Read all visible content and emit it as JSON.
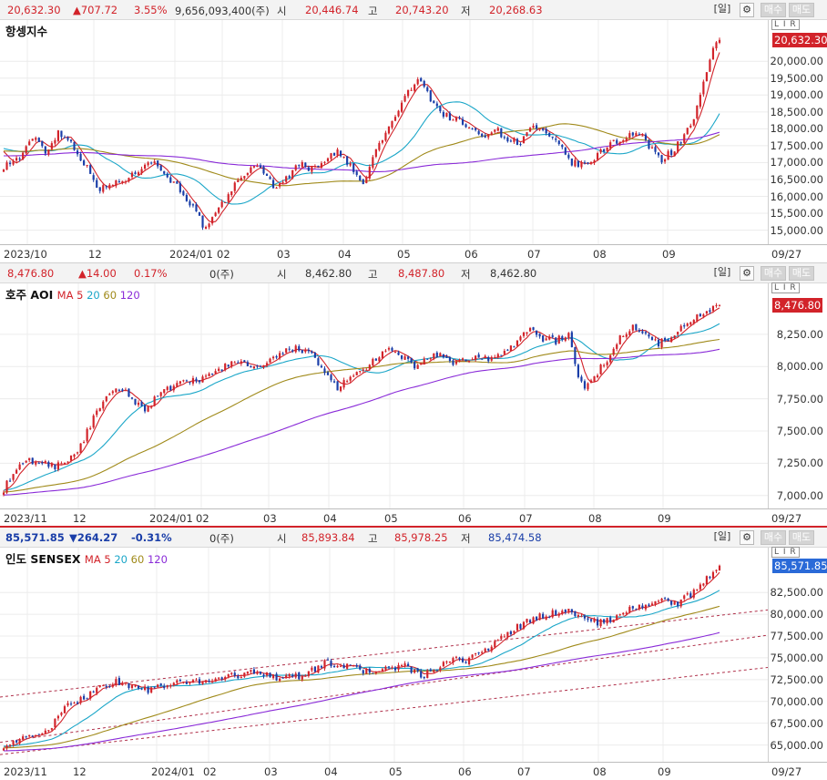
{
  "panels": [
    {
      "header": {
        "price": "20,632.30",
        "change": "▲707.72",
        "pct": "3.55%",
        "volume": "9,656,093,400(주)",
        "open_label": "시",
        "open": "20,446.74",
        "high_label": "고",
        "high": "20,743.20",
        "low_label": "저",
        "low": "20,268.63",
        "dir": "up"
      },
      "toolbar": {
        "period": "[일]",
        "gear": "⚙",
        "buy": "매수",
        "sell": "매도",
        "lir": "L I R"
      },
      "title": "항셍지수",
      "ma_legend": null,
      "price_ticks": [
        "20,000.00",
        "19,500.00",
        "19,000.00",
        "18,500.00",
        "18,000.00",
        "17,500.00",
        "17,000.00",
        "16,500.00",
        "16,000.00",
        "15,500.00",
        "15,000.00"
      ],
      "current_label": "20,632.30",
      "x_labels": [
        "2023/10",
        "12",
        "2024/01",
        "02",
        "03",
        "04",
        "05",
        "06",
        "07",
        "08",
        "09",
        "09/27"
      ]
    },
    {
      "header": {
        "price": "8,476.80",
        "change": "▲14.00",
        "pct": "0.17%",
        "volume": "0(주)",
        "open_label": "시",
        "open": "8,462.80",
        "high_label": "고",
        "high": "8,487.80",
        "low_label": "저",
        "low": "8,462.80",
        "dir": "up"
      },
      "toolbar": {
        "period": "[일]",
        "gear": "⚙",
        "buy": "매수",
        "sell": "매도",
        "lir": "L I R"
      },
      "title": "호주 AOI",
      "ma_legend": {
        "label": "MA",
        "p5": "5",
        "p20": "20",
        "p60": "60",
        "p120": "120"
      },
      "price_ticks": [
        "8,250.00",
        "8,000.00",
        "7,750.00",
        "7,500.00",
        "7,250.00",
        "7,000.00"
      ],
      "current_label": "8,476.80",
      "x_labels": [
        "2023/11",
        "12",
        "2024/01",
        "02",
        "03",
        "04",
        "05",
        "06",
        "07",
        "08",
        "09",
        "09/27"
      ]
    },
    {
      "header": {
        "price": "85,571.85",
        "change": "▼264.27",
        "pct": "-0.31%",
        "volume": "0(주)",
        "open_label": "시",
        "open": "85,893.84",
        "high_label": "고",
        "high": "85,978.25",
        "low_label": "저",
        "low": "85,474.58",
        "dir": "down"
      },
      "toolbar": {
        "period": "[일]",
        "gear": "⚙",
        "buy": "매수",
        "sell": "매도",
        "lir": "L I R"
      },
      "title": "인도 SENSEX",
      "ma_legend": {
        "label": "MA",
        "p5": "5",
        "p20": "20",
        "p60": "60",
        "p120": "120"
      },
      "price_ticks": [
        "82,500.00",
        "80,000.00",
        "77,500.00",
        "75,000.00",
        "72,500.00",
        "70,000.00",
        "67,500.00",
        "65,000.00"
      ],
      "current_label": "85,571.85",
      "x_labels": [
        "2023/11",
        "12",
        "2024/01",
        "02",
        "03",
        "04",
        "05",
        "06",
        "07",
        "08",
        "09",
        "09/27"
      ]
    }
  ],
  "colors": {
    "up": "#d2232a",
    "down": "#1a3ea8",
    "ma5": "#d2232a",
    "ma20": "#1aa6c8",
    "ma60": "#a08a1a",
    "ma120": "#8a2bd8",
    "channel": "#b0304a"
  },
  "chart_data": [
    {
      "type": "candlestick",
      "title": "항셍지수",
      "ylim": [
        14800,
        20950
      ],
      "anchors": [
        [
          0,
          16900
        ],
        [
          5,
          17150
        ],
        [
          10,
          17800
        ],
        [
          13,
          17300
        ],
        [
          17,
          17900
        ],
        [
          21,
          17600
        ],
        [
          25,
          17000
        ],
        [
          30,
          16200
        ],
        [
          35,
          16400
        ],
        [
          40,
          16600
        ],
        [
          45,
          17100
        ],
        [
          48,
          16900
        ],
        [
          52,
          16500
        ],
        [
          56,
          16100
        ],
        [
          60,
          15500
        ],
        [
          63,
          15000
        ],
        [
          67,
          15600
        ],
        [
          71,
          16200
        ],
        [
          75,
          16700
        ],
        [
          80,
          16900
        ],
        [
          84,
          16300
        ],
        [
          88,
          16500
        ],
        [
          92,
          17000
        ],
        [
          96,
          16800
        ],
        [
          100,
          17100
        ],
        [
          104,
          17300
        ],
        [
          108,
          16900
        ],
        [
          112,
          16300
        ],
        [
          116,
          17400
        ],
        [
          120,
          18000
        ],
        [
          123,
          18600
        ],
        [
          127,
          19200
        ],
        [
          130,
          19500
        ],
        [
          133,
          18900
        ],
        [
          137,
          18400
        ],
        [
          141,
          18300
        ],
        [
          145,
          18000
        ],
        [
          149,
          17800
        ],
        [
          153,
          18000
        ],
        [
          157,
          17700
        ],
        [
          161,
          17600
        ],
        [
          165,
          18100
        ],
        [
          169,
          17800
        ],
        [
          173,
          17500
        ],
        [
          177,
          17000
        ],
        [
          181,
          16900
        ],
        [
          185,
          17200
        ],
        [
          189,
          17600
        ],
        [
          193,
          17700
        ],
        [
          197,
          17900
        ],
        [
          201,
          17500
        ],
        [
          205,
          17100
        ],
        [
          209,
          17400
        ],
        [
          212,
          17800
        ],
        [
          215,
          18300
        ],
        [
          217,
          19000
        ],
        [
          219,
          19600
        ],
        [
          221,
          20300
        ],
        [
          223,
          20632
        ]
      ],
      "ma_periods": [
        5,
        20,
        60,
        120
      ],
      "x_months": [
        "2023/10",
        "12",
        "2024/01",
        "02",
        "03",
        "04",
        "05",
        "06",
        "07",
        "08",
        "09"
      ]
    },
    {
      "type": "candlestick",
      "title": "호주 AOI",
      "ylim": [
        6970,
        8560
      ],
      "anchors": [
        [
          0,
          7050
        ],
        [
          4,
          7200
        ],
        [
          8,
          7270
        ],
        [
          12,
          7250
        ],
        [
          16,
          7230
        ],
        [
          20,
          7280
        ],
        [
          24,
          7380
        ],
        [
          28,
          7600
        ],
        [
          32,
          7750
        ],
        [
          36,
          7830
        ],
        [
          40,
          7760
        ],
        [
          44,
          7650
        ],
        [
          48,
          7790
        ],
        [
          52,
          7830
        ],
        [
          56,
          7870
        ],
        [
          60,
          7900
        ],
        [
          64,
          7920
        ],
        [
          68,
          7990
        ],
        [
          72,
          8050
        ],
        [
          76,
          8000
        ],
        [
          80,
          7990
        ],
        [
          84,
          8050
        ],
        [
          88,
          8120
        ],
        [
          92,
          8150
        ],
        [
          96,
          8080
        ],
        [
          100,
          7950
        ],
        [
          104,
          7840
        ],
        [
          108,
          7900
        ],
        [
          112,
          7980
        ],
        [
          116,
          8050
        ],
        [
          120,
          8130
        ],
        [
          124,
          8080
        ],
        [
          128,
          8000
        ],
        [
          132,
          8070
        ],
        [
          136,
          8080
        ],
        [
          140,
          8010
        ],
        [
          144,
          8060
        ],
        [
          148,
          8070
        ],
        [
          152,
          8060
        ],
        [
          156,
          8100
        ],
        [
          160,
          8200
        ],
        [
          164,
          8300
        ],
        [
          168,
          8220
        ],
        [
          172,
          8200
        ],
        [
          176,
          8250
        ],
        [
          179,
          7900
        ],
        [
          181,
          7850
        ],
        [
          184,
          7920
        ],
        [
          188,
          8060
        ],
        [
          192,
          8220
        ],
        [
          196,
          8300
        ],
        [
          200,
          8280
        ],
        [
          204,
          8180
        ],
        [
          208,
          8220
        ],
        [
          212,
          8320
        ],
        [
          216,
          8400
        ],
        [
          220,
          8450
        ],
        [
          223,
          8476.8
        ]
      ],
      "ma_periods": [
        5,
        20,
        60,
        120
      ],
      "x_months": [
        "2023/11",
        "12",
        "2024/01",
        "02",
        "03",
        "04",
        "05",
        "06",
        "07",
        "08",
        "09"
      ]
    },
    {
      "type": "candlestick",
      "title": "인도 SENSEX",
      "ylim": [
        63700,
        86600
      ],
      "anchors": [
        [
          0,
          65000
        ],
        [
          5,
          65600
        ],
        [
          10,
          66000
        ],
        [
          15,
          67200
        ],
        [
          20,
          69500
        ],
        [
          25,
          70500
        ],
        [
          30,
          71600
        ],
        [
          35,
          72300
        ],
        [
          40,
          71700
        ],
        [
          45,
          71300
        ],
        [
          50,
          71800
        ],
        [
          55,
          72100
        ],
        [
          60,
          72300
        ],
        [
          65,
          72500
        ],
        [
          70,
          72900
        ],
        [
          75,
          73100
        ],
        [
          80,
          73400
        ],
        [
          85,
          72800
        ],
        [
          90,
          72700
        ],
        [
          95,
          73300
        ],
        [
          100,
          74400
        ],
        [
          105,
          74300
        ],
        [
          110,
          73600
        ],
        [
          115,
          73400
        ],
        [
          120,
          73800
        ],
        [
          125,
          74100
        ],
        [
          130,
          72800
        ],
        [
          135,
          73800
        ],
        [
          140,
          74700
        ],
        [
          145,
          74800
        ],
        [
          150,
          76000
        ],
        [
          155,
          77200
        ],
        [
          160,
          78500
        ],
        [
          165,
          79500
        ],
        [
          170,
          80000
        ],
        [
          175,
          80500
        ],
        [
          180,
          79800
        ],
        [
          185,
          78900
        ],
        [
          190,
          79600
        ],
        [
          195,
          80500
        ],
        [
          200,
          81200
        ],
        [
          205,
          81500
        ],
        [
          210,
          81300
        ],
        [
          215,
          82500
        ],
        [
          220,
          84500
        ],
        [
          223,
          85571.85
        ]
      ],
      "ma_periods": [
        5,
        20,
        60,
        120
      ],
      "x_months": [
        "2023/11",
        "12",
        "2024/01",
        "02",
        "03",
        "04",
        "05",
        "06",
        "07",
        "08",
        "09"
      ]
    }
  ]
}
